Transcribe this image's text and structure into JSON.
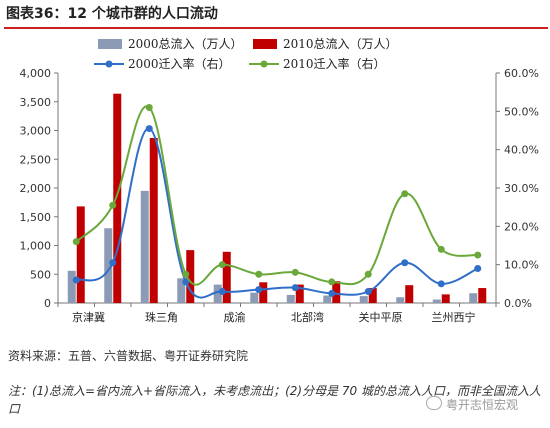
{
  "figure": {
    "title": "图表36：12 个城市群的人口流动",
    "source": "资料来源：五普、六普数据、粤开证券研究院",
    "note": "注：(1)总流入=省内流入+省际流入，未考虑流出；(2)分母是 70 城的总流入人口，而非全国流入人口",
    "watermark": "粤开志恒宏观"
  },
  "chart_data": {
    "type": "bar",
    "categories": [
      "京津冀",
      "",
      "珠三角",
      "",
      "成渝",
      "",
      "北部湾",
      "",
      "关中平原",
      "",
      "兰州西宁",
      ""
    ],
    "category_labels": [
      "京津冀",
      "珠三角",
      "成渝",
      "北部湾",
      "关中平原",
      "兰州西宁"
    ],
    "series": [
      {
        "name": "2000总流入（万人）",
        "kind": "bar",
        "axis": "left",
        "color": "#8c9bb5",
        "values": [
          560,
          1300,
          1950,
          430,
          320,
          180,
          140,
          130,
          120,
          100,
          60,
          170
        ]
      },
      {
        "name": "2010总流入（万人）",
        "kind": "bar",
        "axis": "left",
        "color": "#c00000",
        "values": [
          1680,
          3640,
          2870,
          920,
          890,
          360,
          320,
          380,
          260,
          310,
          150,
          260
        ]
      },
      {
        "name": "2000迁入率（右）",
        "kind": "line",
        "axis": "right",
        "color": "#2f6ec9",
        "values": [
          6.0,
          10.5,
          45.5,
          5.5,
          3.0,
          3.5,
          4.0,
          2.5,
          3.0,
          10.5,
          5.0,
          9.0
        ]
      },
      {
        "name": "2010迁入率（右）",
        "kind": "line",
        "axis": "right",
        "color": "#6aa83a",
        "values": [
          16.0,
          25.5,
          51.0,
          7.5,
          10.0,
          7.5,
          8.0,
          5.5,
          7.5,
          28.5,
          14.0,
          12.5
        ]
      }
    ],
    "y_left": {
      "min": 0,
      "max": 4000,
      "step": 500,
      "tick_labels": [
        "0",
        "500",
        "1,000",
        "1,500",
        "2,000",
        "2,500",
        "3,000",
        "3,500",
        "4,000"
      ]
    },
    "y_right": {
      "min": 0,
      "max": 60,
      "step": 10,
      "unit": "%",
      "tick_labels": [
        "0.0%",
        "10.0%",
        "20.0%",
        "30.0%",
        "40.0%",
        "50.0%",
        "60.0%"
      ]
    },
    "xlabel": "",
    "ylabel": "",
    "grid": false,
    "legend_position": "top"
  }
}
